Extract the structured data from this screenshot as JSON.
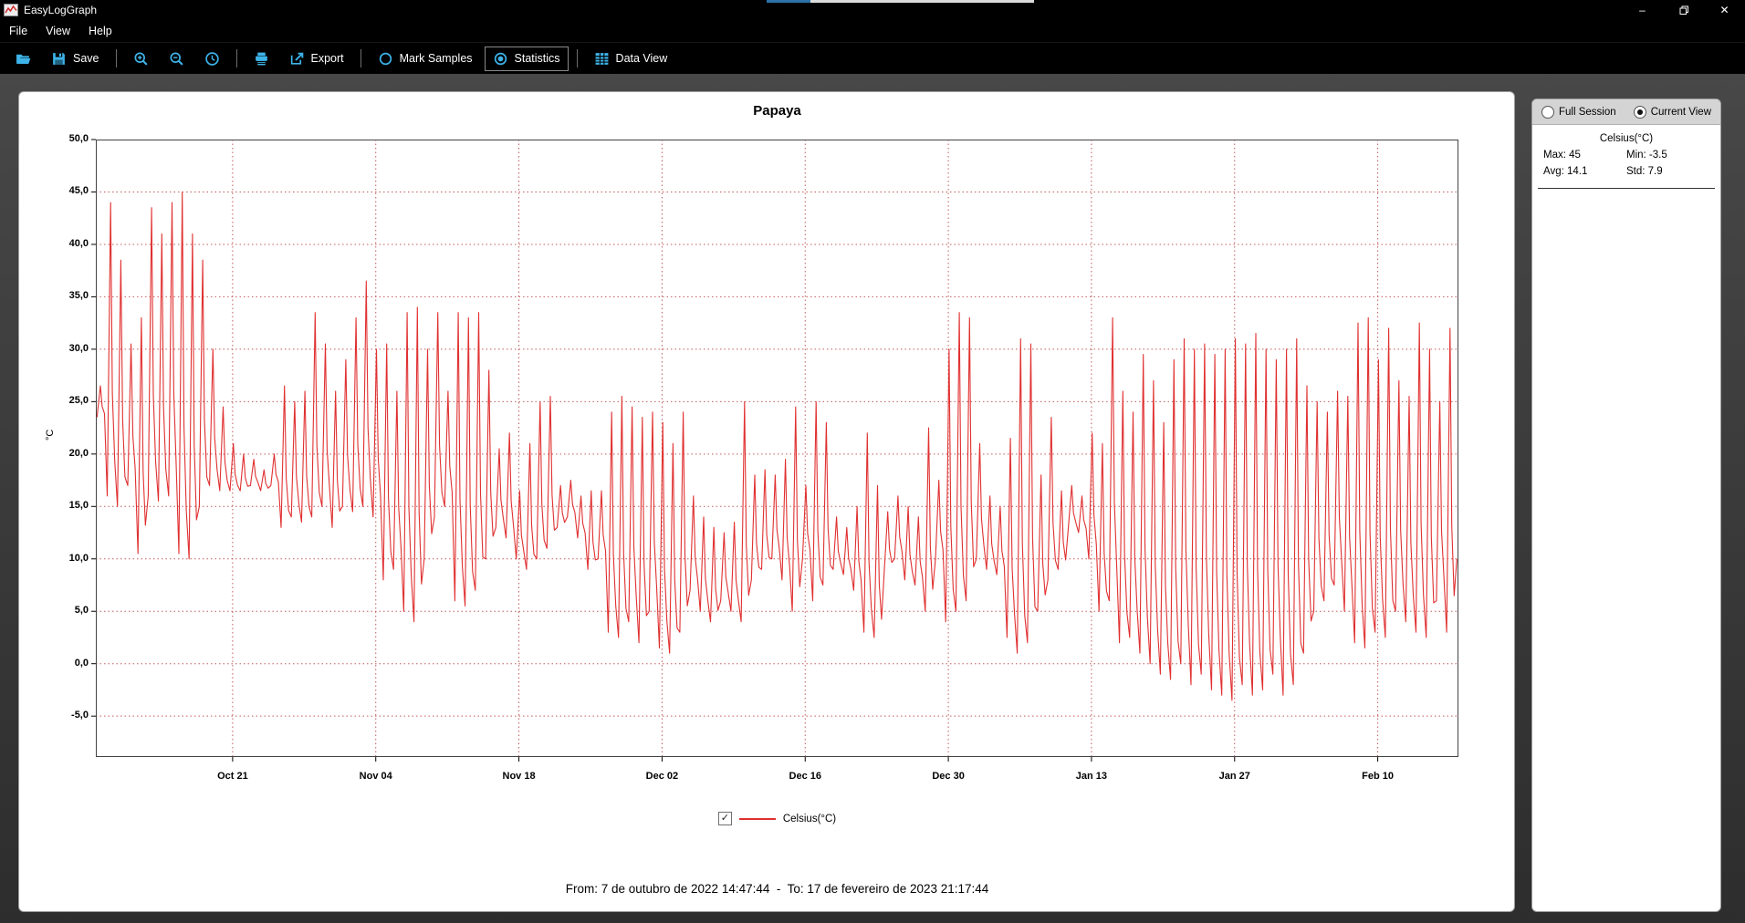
{
  "window": {
    "title": "EasyLogGraph",
    "controls": {
      "minimize": "–",
      "maximize": "restore",
      "close": "✕"
    }
  },
  "menu": {
    "items": [
      "File",
      "View",
      "Help"
    ]
  },
  "toolbar": {
    "accent_color": "#3db3e8",
    "items": [
      {
        "type": "button",
        "name": "open-button",
        "icon": "open-icon",
        "label": ""
      },
      {
        "type": "button",
        "name": "save-button",
        "icon": "save-icon",
        "label": "Save"
      },
      {
        "type": "sep"
      },
      {
        "type": "button",
        "name": "zoom-in-button",
        "icon": "zoom-in-icon",
        "label": ""
      },
      {
        "type": "button",
        "name": "zoom-out-button",
        "icon": "zoom-out-icon",
        "label": ""
      },
      {
        "type": "button",
        "name": "time-range-button",
        "icon": "clock-icon",
        "label": ""
      },
      {
        "type": "sep"
      },
      {
        "type": "button",
        "name": "print-button",
        "icon": "printer-icon",
        "label": ""
      },
      {
        "type": "button",
        "name": "export-button",
        "icon": "export-icon",
        "label": "Export"
      },
      {
        "type": "sep"
      },
      {
        "type": "button",
        "name": "mark-samples-toggle",
        "icon": "radio-unchecked-icon",
        "label": "Mark Samples",
        "active": false
      },
      {
        "type": "button",
        "name": "statistics-toggle",
        "icon": "radio-checked-icon",
        "label": "Statistics",
        "active": true
      },
      {
        "type": "sep"
      },
      {
        "type": "button",
        "name": "data-view-button",
        "icon": "table-icon",
        "label": "Data View"
      }
    ]
  },
  "chart": {
    "title": "Papaya",
    "y_axis_label": "°C",
    "legend": {
      "label": "Celsius(°C)",
      "checked": true,
      "checkmark": "✓"
    },
    "footer": "From: 7 de outubro de 2022 14:47:44  -  To: 17 de fevereiro de 2023 21:17:44"
  },
  "stats_panel": {
    "modes": [
      {
        "label": "Full Session",
        "selected": false
      },
      {
        "label": "Current View",
        "selected": true
      }
    ],
    "header": "Celsius(°C)",
    "stats": [
      {
        "label": "Max",
        "value": "45"
      },
      {
        "label": "Min",
        "value": "-3.5"
      },
      {
        "label": "Avg",
        "value": "14.1"
      },
      {
        "label": "Std",
        "value": "7.9"
      }
    ]
  },
  "chart_data": {
    "type": "line",
    "title": "Papaya",
    "xlabel": "",
    "ylabel": "°C",
    "ylim": [
      -8.9,
      50
    ],
    "yticks": [
      50,
      45,
      40,
      35,
      30,
      25,
      20,
      15,
      10,
      5,
      0,
      -5
    ],
    "ytick_labels": [
      "50,0",
      "45,0",
      "40,0",
      "35,0",
      "30,0",
      "25,0",
      "20,0",
      "15,0",
      "10,0",
      "5,0",
      "0,0",
      "-5,0"
    ],
    "x_span_days": 133.27,
    "xticks": [
      {
        "label": "Oct 21",
        "day": 13.38
      },
      {
        "label": "Nov 04",
        "day": 27.38
      },
      {
        "label": "Nov 18",
        "day": 41.38
      },
      {
        "label": "Dec 02",
        "day": 55.38
      },
      {
        "label": "Dec 16",
        "day": 69.38
      },
      {
        "label": "Dec 30",
        "day": 83.38
      },
      {
        "label": "Jan 13",
        "day": 97.38
      },
      {
        "label": "Jan 27",
        "day": 111.38
      },
      {
        "label": "Feb 10",
        "day": 125.38
      }
    ],
    "grid": {
      "color": "#c25b5b",
      "style": "dotted",
      "on": true
    },
    "legend_position": "bottom",
    "series": [
      {
        "name": "Celsius(°C)",
        "color": "#e03030",
        "visible": true,
        "stats": {
          "max": 45,
          "min": -3.5,
          "avg": 14.1,
          "std": 7.9
        },
        "daily_min_max": [
          [
            23.5,
            26.5
          ],
          [
            16,
            44
          ],
          [
            15,
            38.5
          ],
          [
            17,
            30.5
          ],
          [
            10.5,
            33
          ],
          [
            16,
            43.5
          ],
          [
            15.5,
            41
          ],
          [
            16,
            44
          ],
          [
            10.5,
            45
          ],
          [
            10,
            41
          ],
          [
            15,
            38.5
          ],
          [
            17,
            30
          ],
          [
            16.5,
            24.5
          ],
          [
            16.5,
            21
          ],
          [
            16.5,
            20
          ],
          [
            17,
            19.5
          ],
          [
            16.5,
            18.5
          ],
          [
            17,
            20
          ],
          [
            13,
            26.5
          ],
          [
            14,
            25
          ],
          [
            13.5,
            26
          ],
          [
            14,
            33.5
          ],
          [
            15,
            30.5
          ],
          [
            13,
            26
          ],
          [
            15,
            29
          ],
          [
            14.5,
            33
          ],
          [
            15,
            36.5
          ],
          [
            14,
            30
          ],
          [
            8,
            30.5
          ],
          [
            9,
            26
          ],
          [
            5,
            33.5
          ],
          [
            4,
            34
          ],
          [
            10,
            30
          ],
          [
            14,
            33.5
          ],
          [
            15,
            26
          ],
          [
            6,
            33.5
          ],
          [
            5.5,
            33
          ],
          [
            7,
            33.5
          ],
          [
            10,
            28
          ],
          [
            13,
            20.5
          ],
          [
            12,
            22
          ],
          [
            10,
            16.5
          ],
          [
            9,
            21
          ],
          [
            10,
            25
          ],
          [
            11,
            25.5
          ],
          [
            13,
            17
          ],
          [
            14,
            17.5
          ],
          [
            12,
            16
          ],
          [
            9,
            16.5
          ],
          [
            10,
            16.5
          ],
          [
            3,
            24
          ],
          [
            2.5,
            25.5
          ],
          [
            4,
            24.5
          ],
          [
            2,
            23.5
          ],
          [
            5,
            24
          ],
          [
            1.5,
            23
          ],
          [
            1,
            21
          ],
          [
            3,
            24
          ],
          [
            7,
            16
          ],
          [
            5,
            14
          ],
          [
            4,
            13
          ],
          [
            6,
            12.5
          ],
          [
            5,
            13.5
          ],
          [
            4,
            25
          ],
          [
            8,
            18
          ],
          [
            9,
            18.5
          ],
          [
            10,
            18
          ],
          [
            8,
            19.5
          ],
          [
            5,
            24.5
          ],
          [
            10,
            17
          ],
          [
            6,
            25
          ],
          [
            7.5,
            23
          ],
          [
            9,
            14
          ],
          [
            8.5,
            13
          ],
          [
            7,
            15
          ],
          [
            3,
            22
          ],
          [
            2.5,
            17
          ],
          [
            9,
            14.5
          ],
          [
            10,
            16
          ],
          [
            8,
            15
          ],
          [
            7.5,
            14
          ],
          [
            5,
            22.5
          ],
          [
            10,
            17.5
          ],
          [
            4,
            30
          ],
          [
            5,
            33.5
          ],
          [
            6,
            33
          ],
          [
            10,
            21
          ],
          [
            9,
            16
          ],
          [
            8.5,
            15
          ],
          [
            2.5,
            21.5
          ],
          [
            1,
            31
          ],
          [
            2,
            30.5
          ],
          [
            5,
            18
          ],
          [
            8,
            23.5
          ],
          [
            9,
            16.5
          ],
          [
            13,
            17
          ],
          [
            12.5,
            16
          ],
          [
            10,
            22
          ],
          [
            5,
            21
          ],
          [
            6,
            33
          ],
          [
            2,
            26
          ],
          [
            2.5,
            24
          ],
          [
            1,
            29.5
          ],
          [
            0,
            27
          ],
          [
            -1,
            23
          ],
          [
            -1.5,
            29
          ],
          [
            0,
            31
          ],
          [
            -2,
            30
          ],
          [
            -1,
            30.5
          ],
          [
            -2.5,
            29.5
          ],
          [
            -3,
            30
          ],
          [
            -3.5,
            31
          ],
          [
            -2,
            30.5
          ],
          [
            -3,
            31.5
          ],
          [
            -2.5,
            30
          ],
          [
            -1,
            29
          ],
          [
            -3,
            30
          ],
          [
            -2,
            31
          ],
          [
            1,
            26.5
          ],
          [
            5,
            25
          ],
          [
            6,
            24
          ],
          [
            7.5,
            26
          ],
          [
            5,
            25.5
          ],
          [
            2,
            32.5
          ],
          [
            1.5,
            33
          ],
          [
            3,
            29
          ],
          [
            2.5,
            32
          ],
          [
            5,
            27
          ],
          [
            4,
            25.5
          ],
          [
            3,
            32.5
          ],
          [
            2.5,
            30
          ],
          [
            6,
            25
          ],
          [
            3,
            32
          ],
          [
            10,
            26
          ]
        ]
      }
    ]
  }
}
